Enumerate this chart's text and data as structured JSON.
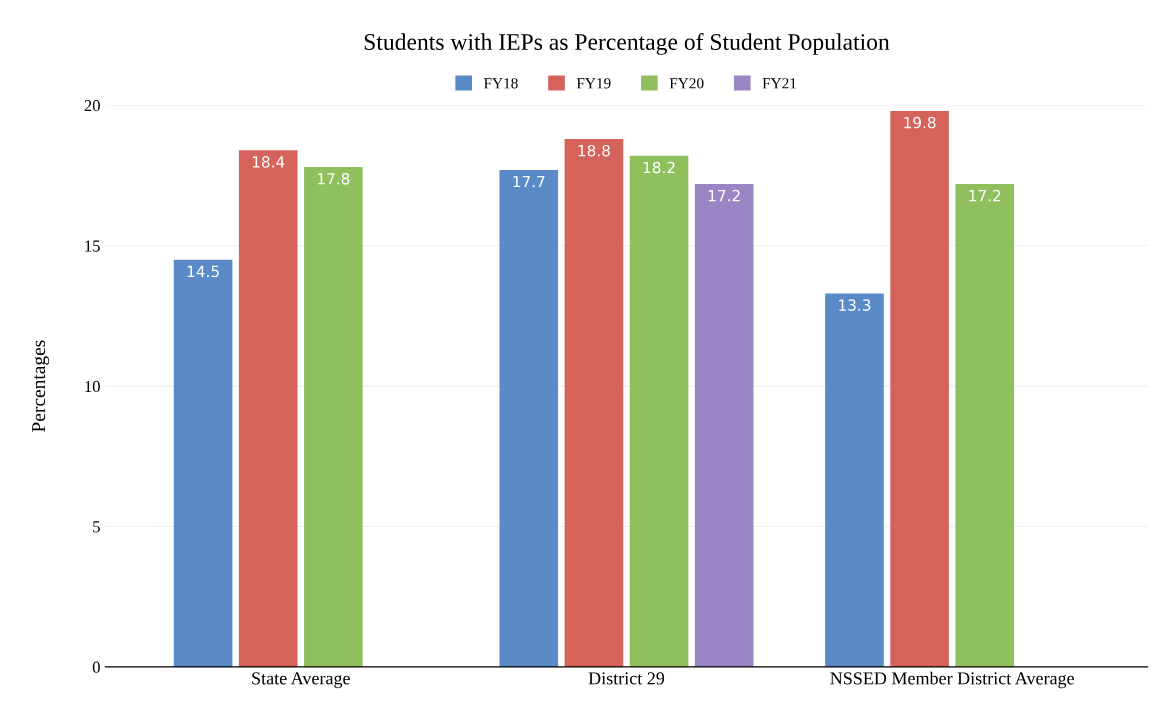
{
  "chart_data": {
    "type": "bar",
    "title": "Students with IEPs as Percentage of Student Population",
    "ylabel": "Percentages",
    "categories": [
      "State Average",
      "District 29",
      "NSSED Member District Average"
    ],
    "series": [
      {
        "name": "FY18",
        "color": "#5b8bc7",
        "values": [
          14.5,
          17.7,
          13.3
        ]
      },
      {
        "name": "FY19",
        "color": "#d5635b",
        "values": [
          18.4,
          18.8,
          19.8
        ]
      },
      {
        "name": "FY20",
        "color": "#90c05e",
        "values": [
          17.8,
          18.2,
          17.2
        ]
      },
      {
        "name": "FY21",
        "color": "#9a86c4",
        "values": [
          null,
          17.2,
          null
        ]
      }
    ],
    "ylim": [
      0,
      20
    ],
    "yticks": [
      0,
      5,
      10,
      15,
      20
    ],
    "grid": "y",
    "legend": "top",
    "data_labels": true
  }
}
